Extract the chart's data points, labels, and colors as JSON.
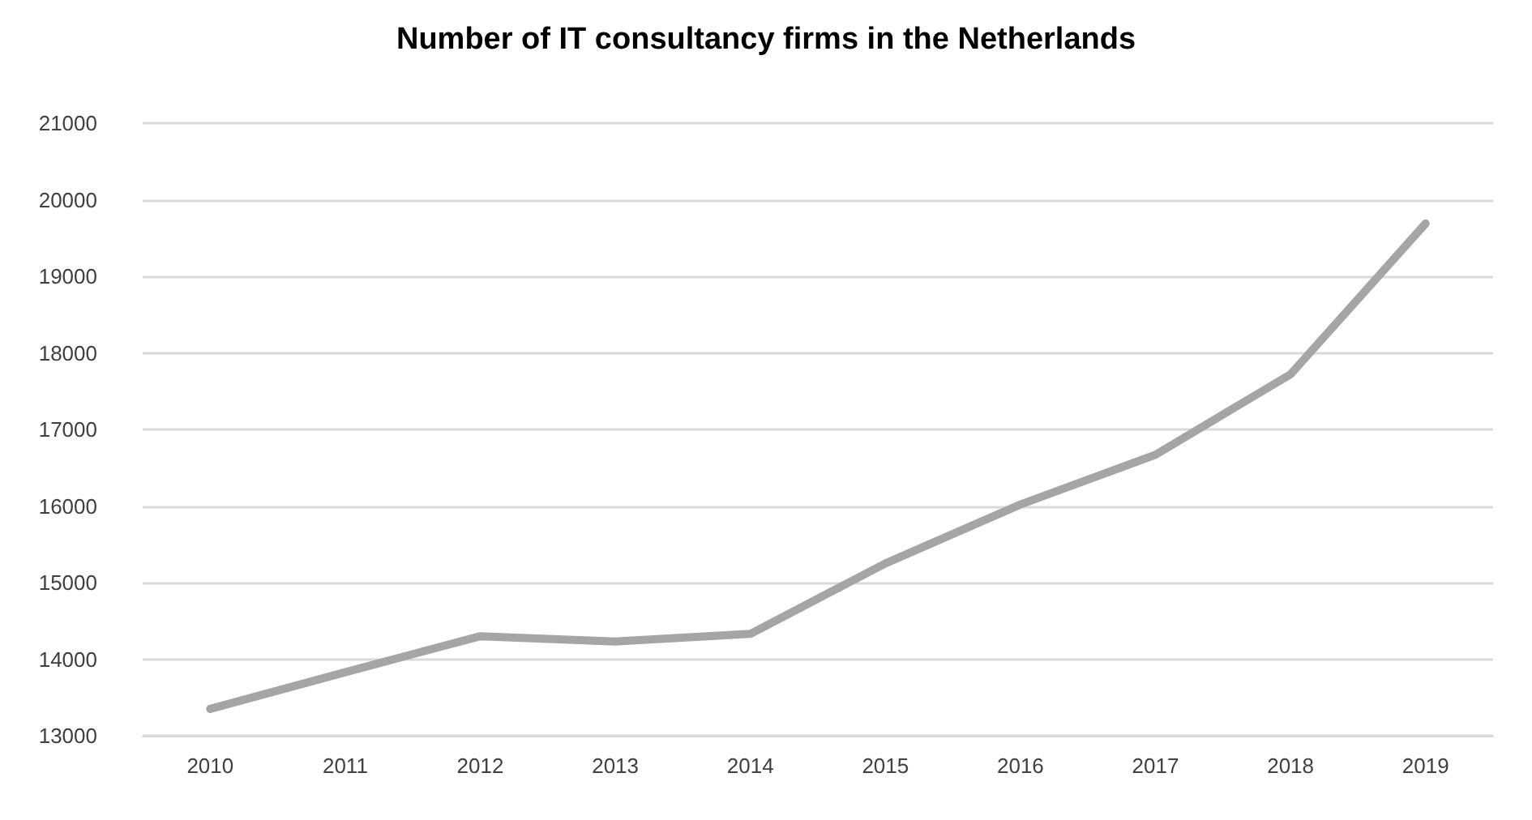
{
  "chart_data": {
    "type": "line",
    "title": "Number of IT consultancy firms in the Netherlands",
    "categories": [
      "2010",
      "2011",
      "2012",
      "2013",
      "2014",
      "2015",
      "2016",
      "2017",
      "2018",
      "2019"
    ],
    "series": [
      {
        "color": "#a5a5a5",
        "values": [
          13350,
          13830,
          14300,
          14230,
          14330,
          15250,
          16020,
          16670,
          17720,
          19690
        ]
      }
    ],
    "ylim": [
      13000,
      21000
    ],
    "yticks": [
      13000,
      14000,
      15000,
      16000,
      17000,
      18000,
      19000,
      20000,
      21000
    ],
    "grid": "y",
    "marker": "none",
    "line_style": "solid"
  }
}
